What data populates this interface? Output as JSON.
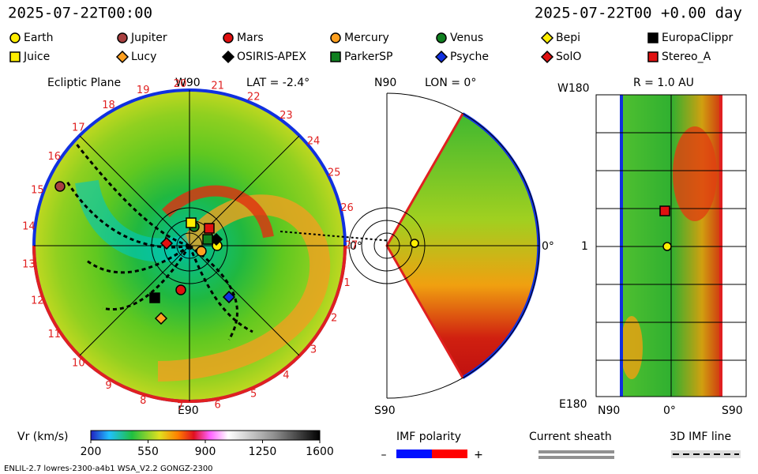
{
  "header": {
    "time": "2025-07-22T00:00",
    "elapsed": "2025-07-22T00 +0.00 day"
  },
  "legend": [
    {
      "label": "Earth",
      "shape": "circle",
      "color": "#ffee00"
    },
    {
      "label": "Jupiter",
      "shape": "circle",
      "color": "#a84040"
    },
    {
      "label": "Mars",
      "shape": "circle",
      "color": "#e01010"
    },
    {
      "label": "Mercury",
      "shape": "circle",
      "color": "#ffa020"
    },
    {
      "label": "Venus",
      "shape": "circle",
      "color": "#108020"
    },
    {
      "label": "Bepi",
      "shape": "diamond",
      "color": "#ffee00"
    },
    {
      "label": "EuropaClippr",
      "shape": "square",
      "color": "#000000"
    },
    {
      "label": "Juice",
      "shape": "square",
      "color": "#ffee00"
    },
    {
      "label": "Lucy",
      "shape": "diamond",
      "color": "#ffa020"
    },
    {
      "label": "OSIRIS-APEX",
      "shape": "diamond",
      "color": "#000000"
    },
    {
      "label": "ParkerSP",
      "shape": "square",
      "color": "#108020"
    },
    {
      "label": "Psyche",
      "shape": "diamond",
      "color": "#1030e0"
    },
    {
      "label": "SolO",
      "shape": "diamond",
      "color": "#e01010"
    },
    {
      "label": "Stereo_A",
      "shape": "square",
      "color": "#e01010"
    }
  ],
  "ecliptic": {
    "title": "Ecliptic Plane",
    "top": "W90",
    "bottom": "E90",
    "right": "0°",
    "lat": "LAT = -2.4°",
    "rim_labels": [
      "1",
      "2",
      "3",
      "4",
      "5",
      "6",
      "7",
      "8",
      "9",
      "10",
      "11",
      "12",
      "13",
      "14",
      "15",
      "16",
      "17",
      "18",
      "19",
      "20",
      "21",
      "22",
      "23",
      "24",
      "25",
      "26",
      "27"
    ]
  },
  "meridional": {
    "top": "N90",
    "bottom": "S90",
    "right": "0°",
    "lon": "LON = 0°"
  },
  "radial": {
    "top": "W180",
    "middle": "1",
    "bottom": "E180",
    "title": "R = 1.0 AU",
    "x_labels": [
      "N90",
      "0°",
      "S90"
    ]
  },
  "colorbar": {
    "label": "Vr (km/s)",
    "range": [
      200,
      1600
    ],
    "ticks": [
      200,
      550,
      900,
      1250,
      1600
    ]
  },
  "imf": {
    "title": "IMF polarity",
    "minus": "–",
    "plus": "+"
  },
  "sheath": {
    "title": "Current sheath"
  },
  "imf_line": {
    "title": "3D IMF line"
  },
  "footer": "ENLIL-2.7 lowres-2300-a4b1 WSA_V2.2 GONGZ-2300"
}
